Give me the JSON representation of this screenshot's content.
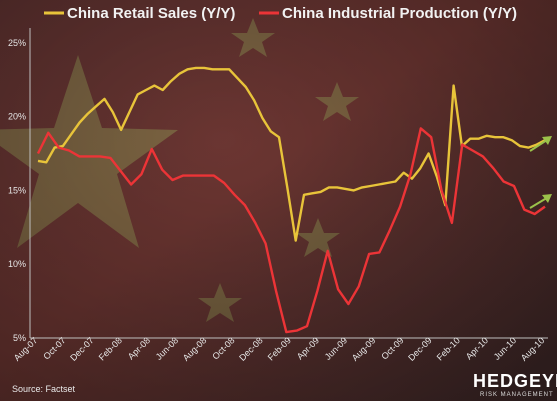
{
  "chart_data": {
    "type": "line",
    "series": [
      {
        "name": "China Retail Sales (Y/Y)",
        "color": "#e8c43a",
        "values": [
          17.0,
          16.9,
          17.9,
          18.0,
          18.8,
          19.6,
          20.2,
          20.7,
          21.2,
          20.3,
          19.1,
          20.3,
          21.5,
          21.8,
          22.1,
          21.8,
          22.4,
          22.9,
          23.2,
          23.3,
          23.3,
          23.2,
          23.2,
          23.2,
          22.6,
          22.0,
          21.1,
          19.9,
          19.0,
          18.6,
          15.2,
          11.6,
          14.7,
          14.8,
          14.9,
          15.2,
          15.2,
          15.1,
          15.0,
          15.2,
          15.3,
          15.4,
          15.5,
          15.6,
          16.2,
          15.8,
          16.5,
          17.5,
          15.9,
          14.0,
          22.1,
          18.0,
          18.5,
          18.5,
          18.7,
          18.6,
          18.6,
          18.4,
          18.0,
          17.9,
          18.1,
          18.4
        ]
      },
      {
        "name": "China Industrial Production (Y/Y)",
        "color": "#ec3437",
        "values": [
          17.5,
          18.9,
          17.9,
          17.7,
          17.3,
          17.3,
          17.3,
          17.2,
          16.3,
          15.4,
          16.1,
          17.8,
          16.4,
          15.7,
          16.0,
          16.0,
          16.0,
          16.0,
          15.5,
          14.7,
          14.0,
          12.8,
          11.4,
          8.2,
          5.4,
          5.5,
          5.8,
          8.2,
          10.9,
          8.3,
          7.3,
          8.5,
          10.7,
          10.8,
          12.3,
          13.9,
          16.1,
          19.2,
          18.6,
          15.0,
          12.8,
          18.1,
          17.7,
          17.3,
          16.5,
          15.6,
          15.3,
          13.7,
          13.4,
          13.9
        ]
      }
    ],
    "x_tick_labels": [
      "Aug-07",
      "Oct-07",
      "Dec-07",
      "Feb-08",
      "Apr-08",
      "Jun-08",
      "Aug-08",
      "Oct-08",
      "Dec-08",
      "Feb-09",
      "Apr-09",
      "Jun-09",
      "Aug-09",
      "Oct-09",
      "Dec-09",
      "Feb-10",
      "Apr-10",
      "Jun-10",
      "Aug-10"
    ],
    "y_tick_labels": [
      "25%",
      "20%",
      "15%",
      "10%",
      "5%"
    ],
    "y_ticks": [
      25,
      20,
      15,
      10,
      5
    ],
    "ylim": [
      5,
      26
    ],
    "grid": false,
    "legend_position": "top-left"
  },
  "source_note": "Source: Factset",
  "logo": {
    "main": "HEDGEYE",
    "sub": "RISK MANAGEMENT"
  },
  "colors": {
    "background": "#4a2b2a",
    "flag_red": "#8a2a26",
    "star": "#8a8a55"
  }
}
